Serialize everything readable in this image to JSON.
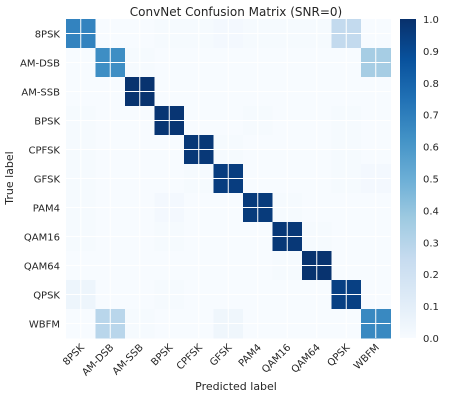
{
  "chart_data": {
    "type": "heatmap",
    "title": "ConvNet Confusion Matrix (SNR=0)",
    "xlabel": "Predicted label",
    "ylabel": "True label",
    "x_categories": [
      "8PSK",
      "AM-DSB",
      "AM-SSB",
      "BPSK",
      "CPFSK",
      "GFSK",
      "PAM4",
      "QAM16",
      "QAM64",
      "QPSK",
      "WBFM"
    ],
    "y_categories": [
      "8PSK",
      "AM-DSB",
      "AM-SSB",
      "BPSK",
      "CPFSK",
      "GFSK",
      "PAM4",
      "QAM16",
      "QAM64",
      "QPSK",
      "WBFM"
    ],
    "values": [
      [
        0.68,
        0.0,
        0.0,
        0.01,
        0.01,
        0.02,
        0.01,
        0.01,
        0.01,
        0.26,
        0.0
      ],
      [
        0.0,
        0.64,
        0.01,
        0.0,
        0.0,
        0.0,
        0.0,
        0.0,
        0.0,
        0.0,
        0.35
      ],
      [
        0.0,
        0.0,
        0.99,
        0.0,
        0.0,
        0.0,
        0.0,
        0.0,
        0.0,
        0.0,
        0.0
      ],
      [
        0.01,
        0.0,
        0.0,
        0.98,
        0.0,
        0.0,
        0.01,
        0.0,
        0.0,
        0.01,
        0.0
      ],
      [
        0.01,
        0.0,
        0.0,
        0.0,
        0.97,
        0.01,
        0.0,
        0.0,
        0.0,
        0.01,
        0.0
      ],
      [
        0.01,
        0.0,
        0.0,
        0.0,
        0.01,
        0.95,
        0.0,
        0.0,
        0.0,
        0.01,
        0.02
      ],
      [
        0.01,
        0.0,
        0.0,
        0.02,
        0.0,
        0.0,
        0.96,
        0.01,
        0.0,
        0.0,
        0.0
      ],
      [
        0.01,
        0.0,
        0.0,
        0.01,
        0.0,
        0.0,
        0.0,
        0.97,
        0.01,
        0.0,
        0.0
      ],
      [
        0.0,
        0.0,
        0.0,
        0.0,
        0.0,
        0.0,
        0.0,
        0.01,
        0.99,
        0.0,
        0.0
      ],
      [
        0.05,
        0.0,
        0.0,
        0.01,
        0.0,
        0.0,
        0.0,
        0.0,
        0.0,
        0.94,
        0.0
      ],
      [
        0.0,
        0.29,
        0.01,
        0.0,
        0.0,
        0.04,
        0.0,
        0.0,
        0.0,
        0.0,
        0.66
      ]
    ],
    "colorbar": {
      "range": [
        0,
        1
      ],
      "ticks": [
        "0.0",
        "0.1",
        "0.2",
        "0.3",
        "0.4",
        "0.5",
        "0.6",
        "0.7",
        "0.8",
        "0.9",
        "1.0"
      ],
      "colormap": "Blues"
    },
    "grid": true,
    "colors": {
      "grid_line": "#ffffff",
      "text": "#262626"
    }
  }
}
